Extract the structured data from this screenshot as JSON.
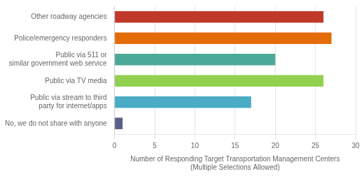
{
  "chart_data": {
    "type": "bar",
    "orientation": "horizontal",
    "categories": [
      "No, we do not share with anyone",
      "Public via stream to third\nparty for internet/apps",
      "Public via TV media",
      "Public via 511 or\nsimilar government web service",
      "Police/emergency responders",
      "Other roadway agencies"
    ],
    "values": [
      1,
      17,
      26,
      20,
      27,
      26
    ],
    "colors": [
      "#5c5f8a",
      "#4bacc6",
      "#92d050",
      "#4aaa97",
      "#e36c09",
      "#c0392b"
    ],
    "xlabel": "Number of Responding Target Transportation Management Centers\n(Multiple Selections Allowed)",
    "xlim": [
      0,
      30
    ],
    "xticks": [
      0,
      5,
      10,
      15,
      20,
      25,
      30
    ],
    "grid": true
  }
}
